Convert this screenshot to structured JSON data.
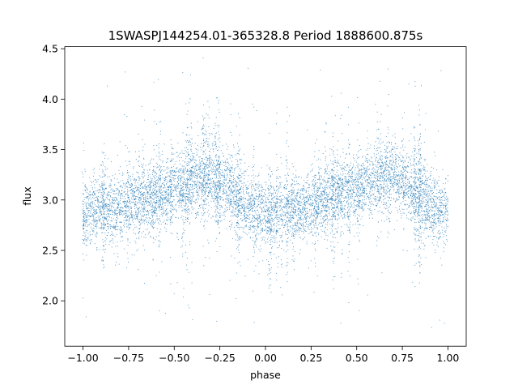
{
  "chart_data": {
    "type": "scatter",
    "title": "1SWASPJ144254.01-365328.8 Period 1888600.875s",
    "xlabel": "phase",
    "ylabel": "flux",
    "xlim": [
      -1.1,
      1.1
    ],
    "ylim": [
      1.55,
      4.52
    ],
    "x_ticks": [
      -1.0,
      -0.75,
      -0.5,
      -0.25,
      0.0,
      0.25,
      0.5,
      0.75,
      1.0
    ],
    "x_tick_labels": [
      "−1.00",
      "−0.75",
      "−0.50",
      "−0.25",
      "0.00",
      "0.25",
      "0.50",
      "0.75",
      "1.00"
    ],
    "y_ticks": [
      2.0,
      2.5,
      3.0,
      3.5,
      4.0,
      4.5
    ],
    "y_tick_labels": [
      "2.0",
      "2.5",
      "3.0",
      "3.5",
      "4.0",
      "4.5"
    ],
    "grid": false,
    "legend": "none",
    "marker_color": "#1f77b4",
    "series": [
      {
        "x": [
          -1.0,
          -0.9,
          -0.8,
          -0.7,
          -0.6,
          -0.5,
          -0.4,
          -0.3,
          -0.2,
          -0.1,
          0.0,
          0.1,
          0.2,
          0.3,
          0.4,
          0.5,
          0.6,
          0.7,
          0.8,
          0.9,
          1.0
        ],
        "y": [
          2.85,
          2.95,
          2.9,
          3.0,
          3.05,
          3.1,
          3.2,
          3.25,
          3.1,
          2.95,
          2.85,
          2.9,
          2.9,
          3.0,
          3.05,
          3.1,
          3.2,
          3.25,
          3.1,
          2.95,
          2.85
        ]
      }
    ]
  }
}
